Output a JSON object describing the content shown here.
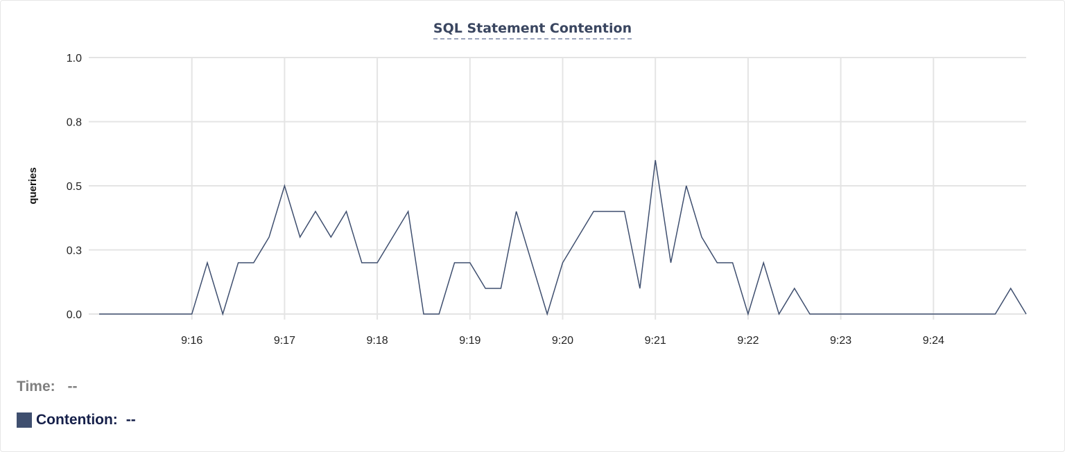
{
  "chart_data": {
    "type": "line",
    "title": "SQL Statement Contention",
    "ylabel": "queries",
    "xlabel": "",
    "ylim": [
      0,
      1.0
    ],
    "yticks": [
      0,
      0.25,
      0.5,
      0.75,
      1.0
    ],
    "ytick_labels": [
      "0.0",
      "0.3",
      "0.5",
      "0.8",
      "1.0"
    ],
    "xlim": [
      "9:15:00",
      "9:25:00"
    ],
    "xtick_labels": [
      "9:16",
      "9:17",
      "9:18",
      "9:19",
      "9:20",
      "9:21",
      "9:22",
      "9:23",
      "9:24"
    ],
    "x_interval_seconds": 10,
    "grid": true,
    "color": "#3f4f6f",
    "series": [
      {
        "name": "Contention",
        "values": [
          0,
          0,
          0,
          0,
          0,
          0,
          0,
          0.2,
          0,
          0.2,
          0.2,
          0.3,
          0.5,
          0.3,
          0.4,
          0.3,
          0.4,
          0.2,
          0.2,
          0.3,
          0.4,
          0,
          0,
          0.2,
          0.2,
          0.1,
          0.1,
          0.4,
          0.2,
          0,
          0.2,
          0.3,
          0.4,
          0.4,
          0.4,
          0.1,
          0.6,
          0.2,
          0.5,
          0.3,
          0.2,
          0.2,
          0,
          0.2,
          0,
          0.1,
          0,
          0,
          0,
          0,
          0,
          0,
          0,
          0,
          0,
          0,
          0,
          0,
          0,
          0.1,
          0
        ]
      }
    ]
  },
  "legend": {
    "time_label": "Time:",
    "time_value": "--",
    "series_label": "Contention:",
    "series_value": "--"
  }
}
